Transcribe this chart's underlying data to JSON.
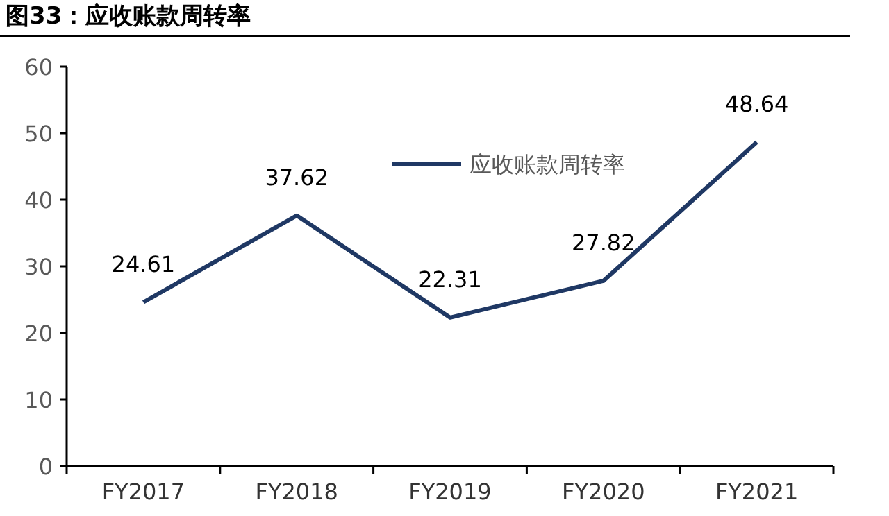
{
  "chart_data": {
    "type": "line",
    "title": "图33：应收账款周转率",
    "categories": [
      "FY2017",
      "FY2018",
      "FY2019",
      "FY2020",
      "FY2021"
    ],
    "series": [
      {
        "name": "应收账款周转率",
        "color": "#1f3864",
        "values": [
          24.61,
          37.62,
          22.31,
          27.82,
          48.64
        ]
      }
    ],
    "ylim": [
      0,
      60
    ],
    "yticks": [
      0,
      10,
      20,
      30,
      40,
      50,
      60
    ],
    "data_labels": true,
    "legend": "top",
    "grid": false,
    "marker": "none",
    "line_style": "solid"
  }
}
